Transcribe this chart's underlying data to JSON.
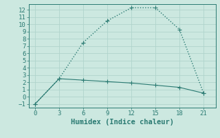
{
  "xlabel": "Humidex (Indice chaleur)",
  "line1_x": [
    0,
    3,
    6,
    9,
    12,
    15,
    18,
    21
  ],
  "line1_y": [
    -1,
    2.5,
    7.5,
    10.5,
    12.3,
    12.3,
    9.3,
    0.5
  ],
  "line2_x": [
    0,
    3,
    6,
    9,
    12,
    15,
    18,
    21
  ],
  "line2_y": [
    -1,
    2.5,
    2.3,
    2.1,
    1.9,
    1.6,
    1.3,
    0.5
  ],
  "line_color": "#2a7a72",
  "bg_color": "#cce8e0",
  "grid_color": "#b0d4cc",
  "ylim": [
    -1.5,
    12.8
  ],
  "xlim": [
    -0.8,
    22.5
  ],
  "yticks": [
    -1,
    0,
    1,
    2,
    3,
    4,
    5,
    6,
    7,
    8,
    9,
    10,
    11,
    12
  ],
  "xticks": [
    0,
    3,
    6,
    9,
    12,
    15,
    18,
    21
  ],
  "tick_fontsize": 6.5,
  "xlabel_fontsize": 7.5
}
